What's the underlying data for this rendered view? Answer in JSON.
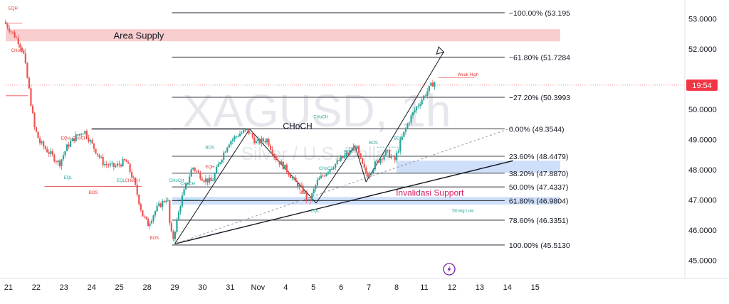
{
  "chart_data": {
    "type": "candlestick",
    "symbol": "XAGUSD, 1h",
    "subtitle": "Silver / U.S. Dollar",
    "y_range": [
      44.5,
      53.5
    ],
    "x_range": [
      0,
      24.5
    ],
    "x_ticks": [
      {
        "label": "21",
        "pos": 0.1
      },
      {
        "label": "22",
        "pos": 1.1
      },
      {
        "label": "23",
        "pos": 2.1
      },
      {
        "label": "24",
        "pos": 3.1
      },
      {
        "label": "25",
        "pos": 4.1
      },
      {
        "label": "28",
        "pos": 5.1
      },
      {
        "label": "29",
        "pos": 6.1
      },
      {
        "label": "30",
        "pos": 7.1
      },
      {
        "label": "31",
        "pos": 8.1
      },
      {
        "label": "Nov",
        "pos": 9.1
      },
      {
        "label": "4",
        "pos": 10.1
      },
      {
        "label": "5",
        "pos": 11.1
      },
      {
        "label": "6",
        "pos": 12.1
      },
      {
        "label": "7",
        "pos": 13.1
      },
      {
        "label": "8",
        "pos": 14.1
      },
      {
        "label": "11",
        "pos": 15.1
      },
      {
        "label": "12",
        "pos": 16.1
      },
      {
        "label": "13",
        "pos": 17.1
      },
      {
        "label": "14",
        "pos": 18.1
      },
      {
        "label": "15",
        "pos": 19.1
      }
    ],
    "y_ticks": [
      {
        "label": "53.0000",
        "value": 53.0
      },
      {
        "label": "52.0000",
        "value": 52.0
      },
      {
        "label": "50.0000",
        "value": 50.0
      },
      {
        "label": "49.0000",
        "value": 49.0
      },
      {
        "label": "48.0000",
        "value": 48.0
      },
      {
        "label": "47.0000",
        "value": 47.0
      },
      {
        "label": "46.0000",
        "value": 46.0
      },
      {
        "label": "45.0000",
        "value": 45.0
      }
    ],
    "fib_levels": [
      {
        "label": "−100.00% (53.195",
        "value": 53.195
      },
      {
        "label": "−61.80% (51.7284",
        "value": 51.7284
      },
      {
        "label": "−27.20% (50.3993",
        "value": 50.3993
      },
      {
        "label": "0.00% (49.3544)",
        "value": 49.3544
      },
      {
        "label": "23.60% (48.4479)",
        "value": 48.4479
      },
      {
        "label": "38.20% (47.8870)",
        "value": 47.887
      },
      {
        "label": "50.00% (47.4337)",
        "value": 47.4337
      },
      {
        "label": "61.80% (46.9804)",
        "value": 46.9804
      },
      {
        "label": "78.60% (46.3351)",
        "value": 46.3351
      },
      {
        "label": "100.00% (45.5130",
        "value": 45.513
      }
    ],
    "fib_x_start": 6.0,
    "fib_x_end": 18.0,
    "current_price_badge": "19:54",
    "current_price": 50.8,
    "zones": [
      {
        "name": "supply",
        "label": "Area Supply",
        "x0": 0,
        "x1": 20.0,
        "y0": 52.25,
        "y1": 52.65,
        "color": "#f8c5c5"
      },
      {
        "name": "support-invalidation",
        "label": "Invalidasi Support",
        "x0": 6.0,
        "x1": 20.0,
        "y0": 46.85,
        "y1": 47.1,
        "color": "#bbd2f7"
      },
      {
        "name": "support-upper",
        "label": "",
        "x0": 14.1,
        "x1": 20.0,
        "y0": 47.9,
        "y1": 48.3,
        "color": "#bbd2f7"
      }
    ],
    "annotations": [
      {
        "text": "EQH",
        "x": 0.1,
        "y": 53.3,
        "color": "red"
      },
      {
        "text": "CHoCH",
        "x": 0.2,
        "y": 51.9,
        "color": "red"
      },
      {
        "text": "EQH",
        "x": 2.0,
        "y": 49.0,
        "color": "red"
      },
      {
        "text": "CHoCH",
        "x": 2.4,
        "y": 49.0,
        "color": "red"
      },
      {
        "text": "EQL",
        "x": 2.1,
        "y": 47.7,
        "color": "teal"
      },
      {
        "text": "BOS",
        "x": 3.0,
        "y": 47.2,
        "color": "red"
      },
      {
        "text": "EQL",
        "x": 4.0,
        "y": 47.6,
        "color": "teal"
      },
      {
        "text": "CHoCH",
        "x": 4.3,
        "y": 47.6,
        "color": "red"
      },
      {
        "text": "BOS",
        "x": 5.2,
        "y": 45.7,
        "color": "red"
      },
      {
        "text": "CHoCH",
        "x": 5.9,
        "y": 47.6,
        "color": "teal"
      },
      {
        "text": "CHoCH",
        "x": 6.3,
        "y": 47.5,
        "color": "teal"
      },
      {
        "text": "EQH",
        "x": 7.2,
        "y": 48.05,
        "color": "red"
      },
      {
        "text": "BOS",
        "x": 7.2,
        "y": 48.7,
        "color": "teal"
      },
      {
        "text": "CHoCH",
        "x": 11.1,
        "y": 49.7,
        "color": "teal"
      },
      {
        "text": "CHoCH",
        "x": 10.0,
        "y": 49.35,
        "color": "dark"
      },
      {
        "text": "BOS",
        "x": 10.6,
        "y": 47.2,
        "color": "red"
      },
      {
        "text": "EQL",
        "x": 11.0,
        "y": 46.6,
        "color": "teal"
      },
      {
        "text": "CHoCH",
        "x": 11.3,
        "y": 48.0,
        "color": "teal"
      },
      {
        "text": "BOS",
        "x": 12.2,
        "y": 48.55,
        "color": "teal"
      },
      {
        "text": "BOS",
        "x": 13.1,
        "y": 48.85,
        "color": "teal"
      },
      {
        "text": "BOS",
        "x": 14.0,
        "y": 49.0,
        "color": "teal"
      },
      {
        "text": "Weak High",
        "x": 16.3,
        "y": 51.1,
        "color": "red"
      },
      {
        "text": "Strong Low",
        "x": 16.1,
        "y": 46.6,
        "color": "teal"
      }
    ]
  }
}
